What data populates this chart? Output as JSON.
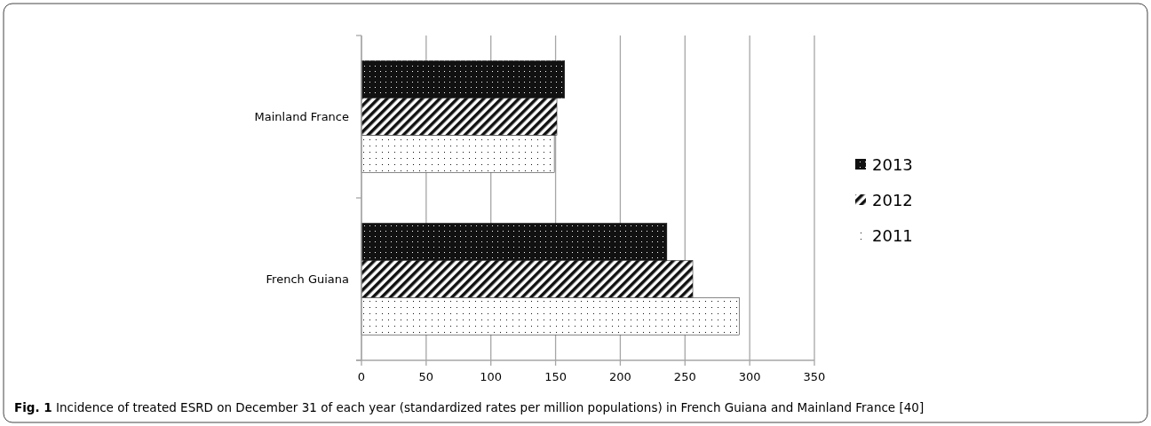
{
  "chart_data": {
    "type": "bar",
    "orientation": "horizontal",
    "categories": [
      "Mainland France",
      "French Guiana"
    ],
    "series": [
      {
        "name": "2013",
        "color": "#111111",
        "values": [
          157,
          236
        ]
      },
      {
        "name": "2012",
        "color": "#111111",
        "values": [
          151,
          256
        ]
      },
      {
        "name": "2011",
        "color": "#111111",
        "values": [
          149,
          292
        ]
      }
    ],
    "xlim": [
      0,
      350
    ],
    "xticks": [
      0,
      50,
      100,
      150,
      200,
      250,
      300,
      350
    ],
    "grid": "x",
    "legend": "right",
    "annotations": [
      "Fig. 1 Incidence of treated ESRD on December 31 of each year (standardized rates per million populations) in French Guiana and Mainland France [40]"
    ]
  }
}
